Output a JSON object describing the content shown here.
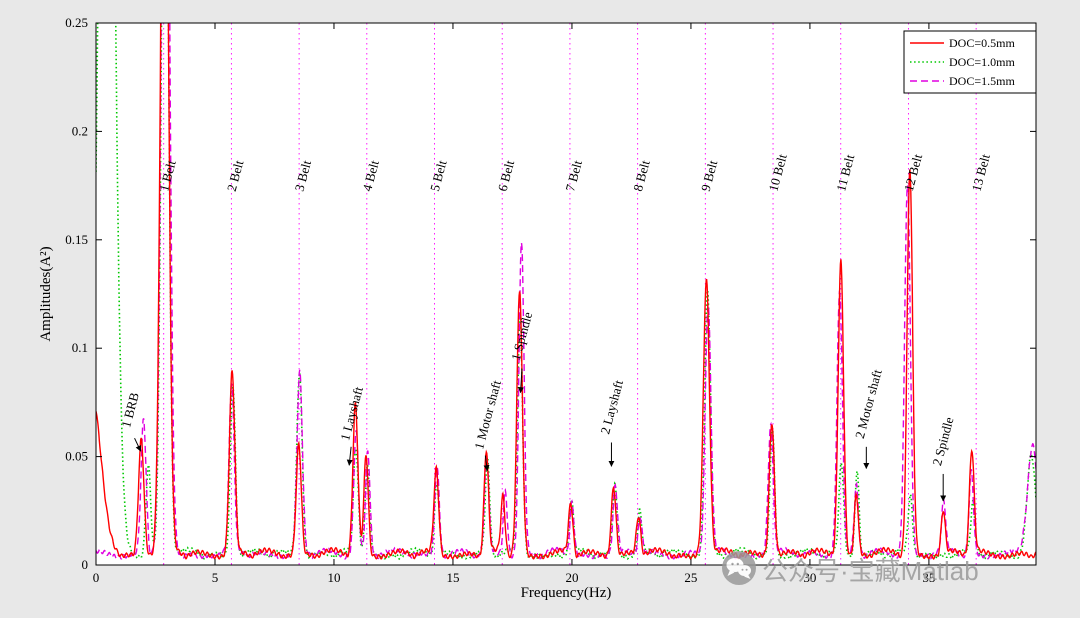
{
  "figure": {
    "background": "#e8e8e8",
    "watermark": {
      "text": "公众号·宝藏Matlab",
      "icon": "wechat-icon",
      "color": "#9a9a9a"
    }
  },
  "chart_data": {
    "type": "line",
    "title": "",
    "xlabel": "Frequency(Hz)",
    "ylabel": "Amplitudes(A²)",
    "xlim": [
      0,
      39.5
    ],
    "ylim": [
      0,
      0.25
    ],
    "x_ticks": [
      0,
      5,
      10,
      15,
      20,
      25,
      30,
      35
    ],
    "x_tick_labels": [
      "0",
      "5",
      "10",
      "15",
      "20",
      "25",
      "30",
      "35"
    ],
    "y_ticks": [
      0,
      0.05,
      0.1,
      0.15,
      0.2,
      0.25
    ],
    "y_tick_labels": [
      "0",
      "0.05",
      "0.1",
      "0.15",
      "0.2",
      "0.25"
    ],
    "legend": {
      "position": "top-right",
      "border_color": "#000000",
      "background": "#ffffff"
    },
    "belt_lines": {
      "frequency": 2.845,
      "count": 13,
      "label_suffix": "Belt",
      "color": "#FF00FF",
      "label_y": 0.172
    },
    "series": [
      {
        "name": "DOC=0.5mm",
        "color": "#FF0000",
        "style": "solid",
        "dash": "",
        "width": 1.4,
        "z": 3,
        "noise_phase": 0.7,
        "peaks": [
          {
            "c": -0.2,
            "h": 0.075,
            "w": 0.55
          },
          {
            "c": 1.9,
            "h": 0.054,
            "w": 0.16
          },
          {
            "c": 2.88,
            "h": 0.42,
            "w": 0.22
          },
          {
            "c": 5.72,
            "h": 0.084,
            "w": 0.16
          },
          {
            "c": 8.52,
            "h": 0.052,
            "w": 0.15
          },
          {
            "c": 10.9,
            "h": 0.069,
            "w": 0.15
          },
          {
            "c": 11.35,
            "h": 0.046,
            "w": 0.13
          },
          {
            "c": 14.3,
            "h": 0.039,
            "w": 0.14
          },
          {
            "c": 16.4,
            "h": 0.047,
            "w": 0.13
          },
          {
            "c": 17.1,
            "h": 0.026,
            "w": 0.12
          },
          {
            "c": 17.8,
            "h": 0.122,
            "w": 0.16
          },
          {
            "c": 19.95,
            "h": 0.023,
            "w": 0.13
          },
          {
            "c": 21.75,
            "h": 0.032,
            "w": 0.14
          },
          {
            "c": 22.8,
            "h": 0.018,
            "w": 0.13
          },
          {
            "c": 25.65,
            "h": 0.128,
            "w": 0.18
          },
          {
            "c": 28.4,
            "h": 0.062,
            "w": 0.15
          },
          {
            "c": 31.3,
            "h": 0.136,
            "w": 0.16
          },
          {
            "c": 31.95,
            "h": 0.028,
            "w": 0.12
          },
          {
            "c": 34.2,
            "h": 0.178,
            "w": 0.16
          },
          {
            "c": 35.6,
            "h": 0.02,
            "w": 0.12
          },
          {
            "c": 36.8,
            "h": 0.048,
            "w": 0.14
          }
        ]
      },
      {
        "name": "DOC=1.0mm",
        "color": "#00C800",
        "style": "dotted",
        "dash": "1.5 2.6",
        "width": 1.6,
        "z": 1,
        "noise_phase": 2.1,
        "peaks": [
          {
            "c": 0.45,
            "h": 0.55,
            "w": 0.42
          },
          {
            "c": 2.2,
            "h": 0.042,
            "w": 0.14
          },
          {
            "c": 2.9,
            "h": 0.4,
            "w": 0.21
          },
          {
            "c": 5.75,
            "h": 0.079,
            "w": 0.15
          },
          {
            "c": 8.55,
            "h": 0.085,
            "w": 0.16
          },
          {
            "c": 10.92,
            "h": 0.048,
            "w": 0.14
          },
          {
            "c": 11.4,
            "h": 0.042,
            "w": 0.13
          },
          {
            "c": 14.32,
            "h": 0.033,
            "w": 0.13
          },
          {
            "c": 16.45,
            "h": 0.043,
            "w": 0.13
          },
          {
            "c": 17.82,
            "h": 0.108,
            "w": 0.15
          },
          {
            "c": 19.98,
            "h": 0.024,
            "w": 0.12
          },
          {
            "c": 21.8,
            "h": 0.033,
            "w": 0.13
          },
          {
            "c": 22.85,
            "h": 0.019,
            "w": 0.12
          },
          {
            "c": 25.7,
            "h": 0.122,
            "w": 0.17
          },
          {
            "c": 28.42,
            "h": 0.058,
            "w": 0.14
          },
          {
            "c": 31.32,
            "h": 0.042,
            "w": 0.14
          },
          {
            "c": 31.98,
            "h": 0.04,
            "w": 0.12
          },
          {
            "c": 34.22,
            "h": 0.026,
            "w": 0.13
          },
          {
            "c": 36.85,
            "h": 0.022,
            "w": 0.12
          },
          {
            "c": 39.3,
            "h": 0.045,
            "w": 0.25
          }
        ]
      },
      {
        "name": "DOC=1.5mm",
        "color": "#E000E0",
        "style": "dashed",
        "dash": "7 4",
        "width": 1.4,
        "z": 2,
        "noise_phase": 4.2,
        "peaks": [
          {
            "c": 2.0,
            "h": 0.062,
            "w": 0.15
          },
          {
            "c": 2.92,
            "h": 0.45,
            "w": 0.23
          },
          {
            "c": 5.7,
            "h": 0.077,
            "w": 0.15
          },
          {
            "c": 8.56,
            "h": 0.083,
            "w": 0.16
          },
          {
            "c": 10.93,
            "h": 0.058,
            "w": 0.14
          },
          {
            "c": 11.42,
            "h": 0.048,
            "w": 0.13
          },
          {
            "c": 14.33,
            "h": 0.041,
            "w": 0.14
          },
          {
            "c": 16.42,
            "h": 0.044,
            "w": 0.13
          },
          {
            "c": 17.2,
            "h": 0.03,
            "w": 0.12
          },
          {
            "c": 17.88,
            "h": 0.145,
            "w": 0.15
          },
          {
            "c": 20.0,
            "h": 0.025,
            "w": 0.12
          },
          {
            "c": 21.82,
            "h": 0.031,
            "w": 0.13
          },
          {
            "c": 22.86,
            "h": 0.018,
            "w": 0.12
          },
          {
            "c": 25.72,
            "h": 0.115,
            "w": 0.17
          },
          {
            "c": 28.35,
            "h": 0.06,
            "w": 0.15
          },
          {
            "c": 31.25,
            "h": 0.122,
            "w": 0.16
          },
          {
            "c": 31.95,
            "h": 0.031,
            "w": 0.12
          },
          {
            "c": 34.1,
            "h": 0.172,
            "w": 0.17
          },
          {
            "c": 35.62,
            "h": 0.023,
            "w": 0.12
          },
          {
            "c": 36.78,
            "h": 0.038,
            "w": 0.13
          },
          {
            "c": 39.35,
            "h": 0.05,
            "w": 0.3
          }
        ]
      }
    ],
    "annotations": [
      {
        "label": "1 BRB",
        "color": "#000000",
        "x": 1.42,
        "y": 0.063,
        "arrow": [
          1.62,
          0.0585,
          1.88,
          0.0525
        ]
      },
      {
        "label": "1 Layshaft",
        "color": "#000000",
        "x": 10.62,
        "y": 0.057,
        "arrow": [
          10.72,
          0.0545,
          10.64,
          0.046
        ]
      },
      {
        "label": "1 Motor shaft",
        "color": "#000000",
        "x": 16.25,
        "y": 0.053,
        "arrow": [
          16.36,
          0.0505,
          16.44,
          0.0435
        ]
      },
      {
        "label": "1 Spindle",
        "color": "#0000EE",
        "x": 17.8,
        "y": 0.094,
        "arrow": [
          17.9,
          0.0905,
          17.84,
          0.0795
        ]
      },
      {
        "label": "2 Layshaft",
        "color": "#000000",
        "x": 21.55,
        "y": 0.06,
        "arrow": [
          21.66,
          0.0565,
          21.66,
          0.0455
        ]
      },
      {
        "label": "2 Motor shaft",
        "color": "#000000",
        "x": 32.25,
        "y": 0.058,
        "arrow": [
          32.37,
          0.0545,
          32.37,
          0.0445
        ]
      },
      {
        "label": "2 Spindle",
        "color": "#0000EE",
        "x": 35.5,
        "y": 0.0455,
        "arrow": [
          35.6,
          0.042,
          35.6,
          0.0295
        ]
      }
    ]
  }
}
